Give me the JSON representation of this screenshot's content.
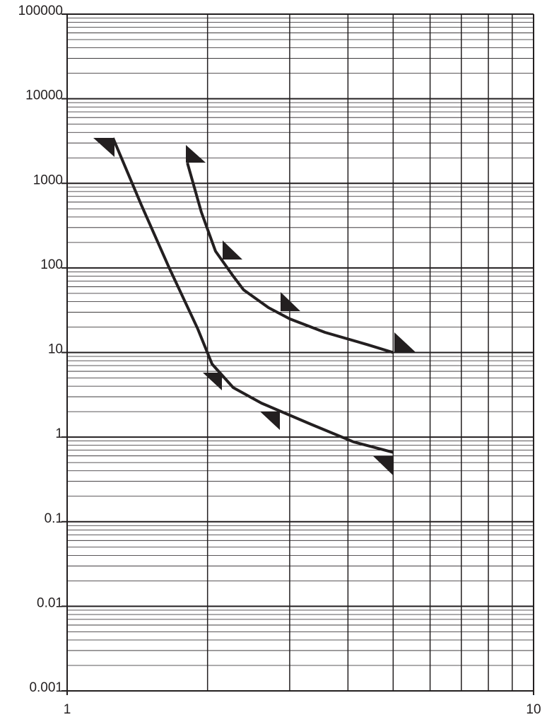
{
  "chart_data": {
    "type": "line",
    "log_x": true,
    "log_y": true,
    "grid": true,
    "minor_grid": true,
    "xlim": [
      1,
      10
    ],
    "xticks": [
      1,
      10
    ],
    "ylim": [
      0.001,
      100000
    ],
    "yticks": [
      0.001,
      0.01,
      0.1,
      1,
      10,
      100,
      1000,
      10000,
      100000
    ],
    "series": [
      {
        "color": "#231f20",
        "x": [
          1.254,
          1.443,
          1.658,
          1.906,
          2.045,
          2.27,
          2.61,
          3.33,
          4.11,
          5
        ],
        "values": [
          3440,
          552,
          98,
          19,
          7.3,
          3.85,
          2.52,
          1.42,
          0.88,
          0.66
        ]
      },
      {
        "color": "#231f20",
        "x": [
          1.81,
          1.94,
          2.08,
          2.27,
          2.39,
          2.7,
          3,
          3.57,
          4.4,
          5
        ],
        "values": [
          1750,
          456,
          158,
          80,
          55,
          34,
          25,
          17.3,
          12.4,
          10
        ]
      }
    ]
  }
}
